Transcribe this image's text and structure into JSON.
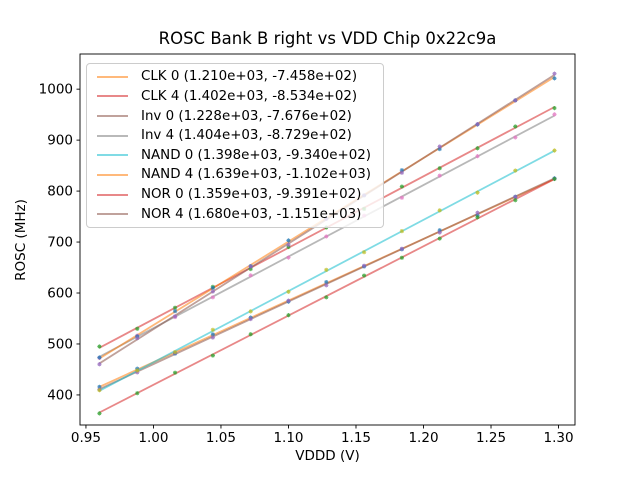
{
  "chart_data": {
    "type": "scatter",
    "title": "ROSC Bank B right vs VDD Chip 0x22c9a",
    "xlabel": "VDDD (V)",
    "ylabel": "ROSC (MHz)",
    "grid": false,
    "legend_position": "upper left",
    "xlim": [
      0.9456,
      1.3122
    ],
    "ylim": [
      341,
      1069
    ],
    "xticks": [
      "0.95",
      "1.00",
      "1.05",
      "1.10",
      "1.15",
      "1.20",
      "1.25",
      "1.30"
    ],
    "xtick_values": [
      0.95,
      1.0,
      1.05,
      1.1,
      1.15,
      1.2,
      1.25,
      1.3
    ],
    "yticks": [
      "400",
      "500",
      "600",
      "700",
      "800",
      "900",
      "1000"
    ],
    "ytick_values": [
      400,
      500,
      600,
      700,
      800,
      900,
      1000
    ],
    "x_points": [
      0.96,
      0.988,
      1.016,
      1.044,
      1.072,
      1.1,
      1.128,
      1.156,
      1.184,
      1.212,
      1.24,
      1.268,
      1.297
    ],
    "series": [
      {
        "name": "CLK 0",
        "legend_label": "CLK 0 (1.210e+03, -7.458e+02)",
        "slope": 1210.0,
        "intercept": -745.8,
        "line_color": "#ff7f0e",
        "marker_color": "#1f77b4"
      },
      {
        "name": "CLK 4",
        "legend_label": "CLK 4 (1.402e+03, -8.534e+02)",
        "slope": 1402.0,
        "intercept": -853.4,
        "line_color": "#d62728",
        "marker_color": "#2ca02c"
      },
      {
        "name": "Inv 0",
        "legend_label": "Inv 0 (1.228e+03, -7.676e+02)",
        "slope": 1228.0,
        "intercept": -767.6,
        "line_color": "#8c564b",
        "marker_color": "#9467bd"
      },
      {
        "name": "Inv 4",
        "legend_label": "Inv 4 (1.404e+03, -8.729e+02)",
        "slope": 1404.0,
        "intercept": -872.9,
        "line_color": "#7f7f7f",
        "marker_color": "#e377c2"
      },
      {
        "name": "NAND 0",
        "legend_label": "NAND 0 (1.398e+03, -9.340e+02)",
        "slope": 1398.0,
        "intercept": -934.0,
        "line_color": "#17becf",
        "marker_color": "#bcbd22"
      },
      {
        "name": "NAND 4",
        "legend_label": "NAND 4 (1.639e+03, -1.102e+03)",
        "slope": 1639.0,
        "intercept": -1102.0,
        "line_color": "#ff7f0e",
        "marker_color": "#1f77b4"
      },
      {
        "name": "NOR 0",
        "legend_label": "NOR 0 (1.359e+03, -9.391e+02)",
        "slope": 1359.0,
        "intercept": -939.1,
        "line_color": "#d62728",
        "marker_color": "#2ca02c"
      },
      {
        "name": "NOR 4",
        "legend_label": "NOR 4 (1.680e+03, -1.151e+03)",
        "slope": 1680.0,
        "intercept": -1151.0,
        "line_color": "#8c564b",
        "marker_color": "#9467bd"
      }
    ],
    "axis_color": "#000000",
    "background_color": "#ffffff"
  }
}
